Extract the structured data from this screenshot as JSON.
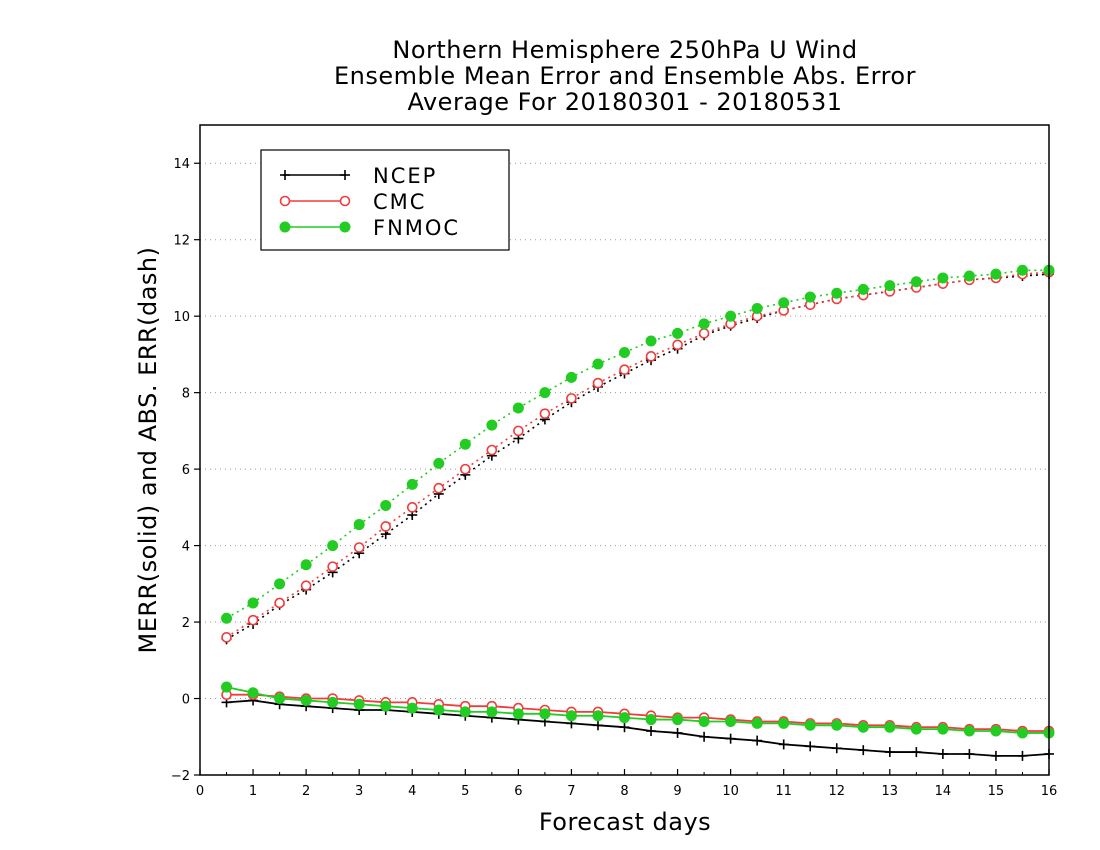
{
  "chart_data": {
    "type": "line",
    "title_lines": [
      "Northern Hemisphere 250hPa U Wind",
      "Ensemble Mean Error and Ensemble Abs. Error",
      "Average For 20180301 - 20180531"
    ],
    "xlabel": "Forecast days",
    "ylabel": "MERR(solid) and ABS. ERR(dash)",
    "xlim": [
      0,
      16
    ],
    "ylim": [
      -2,
      15
    ],
    "x_ticks": [
      0,
      1,
      2,
      3,
      4,
      5,
      6,
      7,
      8,
      9,
      10,
      11,
      12,
      13,
      14,
      15,
      16
    ],
    "y_ticks": [
      -2,
      0,
      2,
      4,
      6,
      8,
      10,
      12,
      14
    ],
    "grid": "horizontal dotted",
    "legend_position": "top-left",
    "x": [
      0.5,
      1,
      1.5,
      2,
      2.5,
      3,
      3.5,
      4,
      4.5,
      5,
      5.5,
      6,
      6.5,
      7,
      7.5,
      8,
      8.5,
      9,
      9.5,
      10,
      10.5,
      11,
      11.5,
      12,
      12.5,
      13,
      13.5,
      14,
      14.5,
      15,
      15.5,
      16
    ],
    "series": [
      {
        "name": "NCEP",
        "color": "#000000",
        "marker": "plus",
        "abs_error_dash": [
          1.55,
          1.95,
          2.45,
          2.85,
          3.3,
          3.8,
          4.3,
          4.8,
          5.35,
          5.85,
          6.35,
          6.8,
          7.3,
          7.75,
          8.15,
          8.5,
          8.85,
          9.15,
          9.5,
          9.75,
          9.95,
          10.15,
          10.3,
          10.45,
          10.55,
          10.65,
          10.75,
          10.85,
          10.95,
          11.0,
          11.05,
          11.1
        ],
        "mean_error_solid": [
          -0.1,
          -0.05,
          -0.15,
          -0.2,
          -0.25,
          -0.3,
          -0.3,
          -0.35,
          -0.4,
          -0.45,
          -0.5,
          -0.55,
          -0.6,
          -0.65,
          -0.7,
          -0.75,
          -0.85,
          -0.9,
          -1.0,
          -1.05,
          -1.1,
          -1.2,
          -1.25,
          -1.3,
          -1.35,
          -1.4,
          -1.4,
          -1.45,
          -1.45,
          -1.5,
          -1.5,
          -1.45
        ]
      },
      {
        "name": "CMC",
        "color": "#f03c3c",
        "marker": "open-circle",
        "abs_error_dash": [
          1.6,
          2.05,
          2.5,
          2.95,
          3.45,
          3.95,
          4.5,
          5.0,
          5.5,
          6.0,
          6.5,
          7.0,
          7.45,
          7.85,
          8.25,
          8.6,
          8.95,
          9.25,
          9.55,
          9.8,
          10.0,
          10.15,
          10.3,
          10.45,
          10.55,
          10.65,
          10.75,
          10.85,
          10.95,
          11.0,
          11.1,
          11.15
        ],
        "mean_error_solid": [
          0.1,
          0.1,
          0.05,
          0.0,
          0.0,
          -0.05,
          -0.1,
          -0.1,
          -0.15,
          -0.2,
          -0.2,
          -0.25,
          -0.3,
          -0.35,
          -0.35,
          -0.4,
          -0.45,
          -0.5,
          -0.5,
          -0.55,
          -0.6,
          -0.6,
          -0.65,
          -0.65,
          -0.7,
          -0.7,
          -0.75,
          -0.75,
          -0.8,
          -0.8,
          -0.85,
          -0.85
        ]
      },
      {
        "name": "FNMOC",
        "color": "#22cc22",
        "marker": "filled-circle",
        "abs_error_dash": [
          2.1,
          2.5,
          3.0,
          3.5,
          4.0,
          4.55,
          5.05,
          5.6,
          6.15,
          6.65,
          7.15,
          7.6,
          8.0,
          8.4,
          8.75,
          9.05,
          9.35,
          9.55,
          9.8,
          10.0,
          10.2,
          10.35,
          10.5,
          10.6,
          10.7,
          10.8,
          10.9,
          11.0,
          11.05,
          11.1,
          11.2,
          11.2
        ],
        "mean_error_solid": [
          0.3,
          0.15,
          0.0,
          -0.05,
          -0.1,
          -0.15,
          -0.2,
          -0.25,
          -0.3,
          -0.35,
          -0.35,
          -0.4,
          -0.4,
          -0.45,
          -0.45,
          -0.5,
          -0.55,
          -0.55,
          -0.6,
          -0.6,
          -0.65,
          -0.65,
          -0.7,
          -0.7,
          -0.75,
          -0.75,
          -0.8,
          -0.8,
          -0.85,
          -0.85,
          -0.9,
          -0.9
        ]
      }
    ]
  }
}
